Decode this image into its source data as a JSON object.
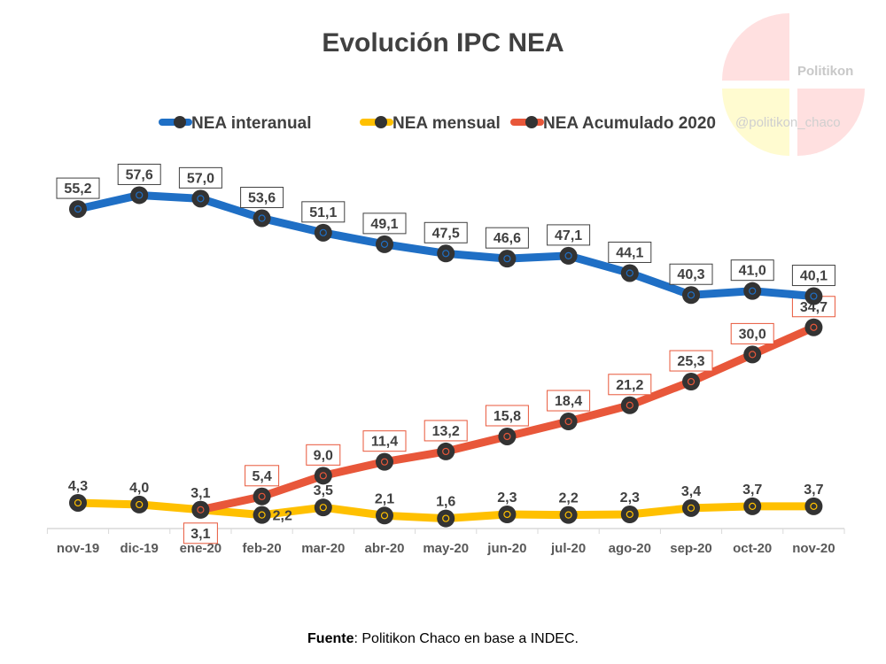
{
  "chart_data": {
    "type": "line",
    "title": "Evolución IPC NEA",
    "categories": [
      "nov-19",
      "dic-19",
      "ene-20",
      "feb-20",
      "mar-20",
      "abr-20",
      "may-20",
      "jun-20",
      "jul-20",
      "ago-20",
      "sep-20",
      "oct-20",
      "nov-20"
    ],
    "series": [
      {
        "name": "NEA interanual",
        "color": "#1f6fc5",
        "values": [
          55.2,
          57.6,
          57.0,
          53.6,
          51.1,
          49.1,
          47.5,
          46.6,
          47.1,
          44.1,
          40.3,
          41.0,
          40.1
        ],
        "labels": [
          "55,2",
          "57,6",
          "57,0",
          "53,6",
          "51,1",
          "49,1",
          "47,5",
          "46,6",
          "47,1",
          "44,1",
          "40,3",
          "41,0",
          "40,1"
        ]
      },
      {
        "name": "NEA mensual",
        "color": "#ffc000",
        "values": [
          4.3,
          4.0,
          3.1,
          2.2,
          3.5,
          2.1,
          1.6,
          2.3,
          2.2,
          2.3,
          3.4,
          3.7,
          3.7
        ],
        "labels": [
          "4,3",
          "4,0",
          "3,1",
          "2,2",
          "3,5",
          "2,1",
          "1,6",
          "2,3",
          "2,2",
          "2,3",
          "3,4",
          "3,7",
          "3,7"
        ]
      },
      {
        "name": "NEA Acumulado 2020",
        "color": "#e8573a",
        "values": [
          null,
          null,
          3.1,
          5.4,
          9.0,
          11.4,
          13.2,
          15.8,
          18.4,
          21.2,
          25.3,
          30.0,
          34.7
        ],
        "labels": [
          null,
          null,
          "3,1",
          "5,4",
          "9,0",
          "11,4",
          "13,2",
          "15,8",
          "18,4",
          "21,2",
          "25,3",
          "30,0",
          "34,7"
        ]
      }
    ],
    "ylim": [
      0,
      58
    ],
    "grid": false,
    "legend": "top",
    "xlabel": "",
    "ylabel": ""
  },
  "source": {
    "label": "Fuente",
    "text": ": Politikon Chaco  en base a INDEC."
  },
  "watermark": {
    "name": "Politikon",
    "handle": "@politikon_chaco"
  }
}
